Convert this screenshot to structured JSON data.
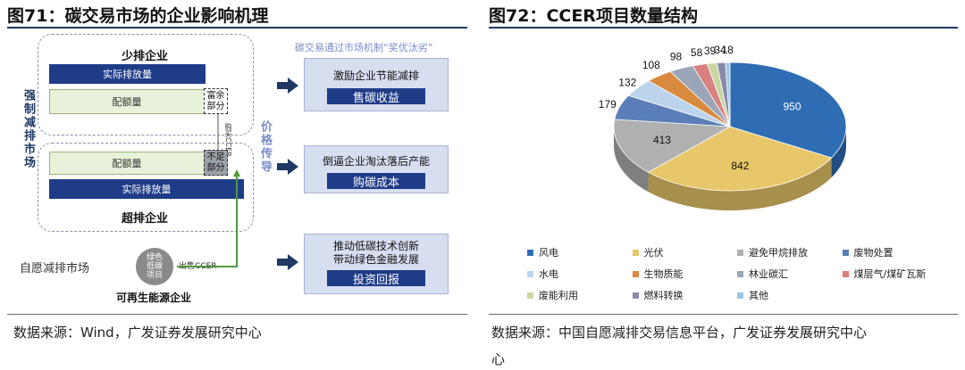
{
  "left": {
    "title": "图71：碳交易市场的企业影响机理",
    "source": "数据来源：Wind，广发证券发展研究中心",
    "low_emission_company": "少排企业",
    "actual_emission": "实际排放量",
    "quota": "配额量",
    "surplus": "富余部分",
    "high_emission_company": "超排企业",
    "shortage": "不足部分",
    "mandatory_market": "强制减排市场",
    "price_transmission": "价格传导",
    "buy_ccer_label": "购买CCER",
    "voluntary_market": "自愿减排市场",
    "green_project": "绿色低碳项目",
    "sell_ccer": "出售CCER",
    "renewable_company": "可再生能源企业",
    "mechanism_title": "碳交易通过市场机制“奖优汰劣”",
    "panels": [
      {
        "text": "激励企业节能减排",
        "button": "售碳收益"
      },
      {
        "text": "倒逼企业淘汰落后产能",
        "button": "购碳成本"
      },
      {
        "text": "推动低碳技术创新\n带动绿色金融发展",
        "button": "投资回报"
      }
    ]
  },
  "right": {
    "title": "图72：CCER项目数量结构",
    "source_line1": "数据来源：中国自愿减排交易信息平台，广发证券发展研究中心",
    "source_line2": "心"
  },
  "chart_data": {
    "type": "pie",
    "title": "图72：CCER项目数量结构",
    "categories": [
      "风电",
      "光伏",
      "避免甲烷排放",
      "废物处置",
      "水电",
      "生物质能",
      "林业碳汇",
      "煤层气/煤矿瓦斯",
      "废能利用",
      "燃料转换",
      "其他"
    ],
    "values": [
      950,
      842,
      413,
      179,
      132,
      108,
      98,
      58,
      39,
      34,
      18
    ],
    "colors": [
      "#2e6db4",
      "#e8c76a",
      "#b0b0b0",
      "#5a7fb8",
      "#bcd3ec",
      "#d98a3f",
      "#9aa6b8",
      "#d98080",
      "#c9d6a3",
      "#8a8aa8",
      "#9cc7e0"
    ],
    "legend_position": "bottom"
  }
}
